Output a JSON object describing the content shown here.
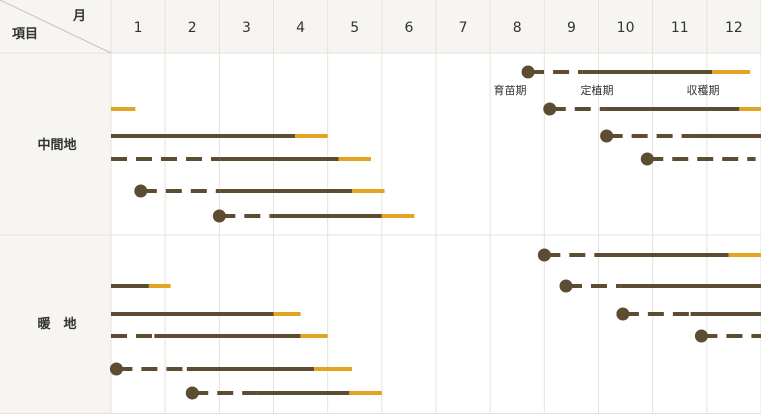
{
  "header": {
    "month_label": "月",
    "item_label": "項目",
    "months": [
      "1",
      "2",
      "3",
      "4",
      "5",
      "6",
      "7",
      "8",
      "9",
      "10",
      "11",
      "12"
    ]
  },
  "regions": [
    {
      "name": "中間地"
    },
    {
      "name": "暖　地"
    }
  ],
  "annotations": {
    "seedling": "育苗期",
    "planting": "定植期",
    "harvest": "収穫期"
  },
  "colors": {
    "line": "#5c4d32",
    "harvest": "#e3a521",
    "header_bg": "#f7f5f1",
    "grid": "#e6e2da"
  },
  "chart_data": {
    "type": "timeline",
    "x_unit": "month",
    "xlim": [
      0.5,
      12.5
    ],
    "rows": [
      {
        "region": 0,
        "dot": 8.2,
        "dash": [
          8.2,
          9.2
        ],
        "solid": [
          9.2,
          11.6
        ],
        "harvest": [
          11.6,
          12.3
        ]
      },
      {
        "region": 0,
        "dot": null,
        "dash": null,
        "solid": null,
        "harvest": [
          0.5,
          0.95
        ]
      },
      {
        "region": 0,
        "dot": 8.6,
        "dash": [
          8.6,
          9.6
        ],
        "solid": [
          9.6,
          12.1
        ],
        "harvest": [
          12.1,
          12.5
        ]
      },
      {
        "region": 0,
        "dot": null,
        "dash": null,
        "solid": [
          0.5,
          3.9
        ],
        "harvest": [
          3.9,
          4.5
        ]
      },
      {
        "region": 0,
        "dot": 9.65,
        "dash": [
          9.65,
          11.2
        ],
        "solid": [
          11.2,
          12.5
        ],
        "harvest": null
      },
      {
        "region": 0,
        "dot": null,
        "dash": [
          0.5,
          2.5
        ],
        "solid": [
          2.5,
          4.7
        ],
        "harvest": [
          4.7,
          5.3
        ]
      },
      {
        "region": 0,
        "dot": 10.4,
        "dash": [
          10.4,
          12.4
        ],
        "solid": null,
        "harvest": null
      },
      {
        "region": 0,
        "dot": 1.05,
        "dash": [
          1.05,
          2.5
        ],
        "solid": [
          2.5,
          4.95
        ],
        "harvest": [
          4.95,
          5.55
        ]
      },
      {
        "region": 0,
        "dot": 2.5,
        "dash": [
          2.5,
          3.45
        ],
        "solid": [
          3.45,
          5.5
        ],
        "harvest": [
          5.5,
          6.1
        ]
      },
      {
        "region": 1,
        "dot": 8.5,
        "dash": [
          8.5,
          9.5
        ],
        "solid": [
          9.5,
          11.9
        ],
        "harvest": [
          11.9,
          12.6
        ]
      },
      {
        "region": 1,
        "dot": null,
        "dash": null,
        "solid": [
          0.5,
          1.2
        ],
        "harvest": [
          1.2,
          1.6
        ]
      },
      {
        "region": 1,
        "dot": 8.9,
        "dash": [
          8.9,
          9.9
        ],
        "solid": [
          9.9,
          12.5
        ],
        "harvest": null
      },
      {
        "region": 1,
        "dot": 9.95,
        "dash": [
          9.95,
          11.2
        ],
        "solid": [
          11.2,
          12.5
        ],
        "harvest": null
      },
      {
        "region": 1,
        "dot": null,
        "dash": null,
        "solid": [
          0.5,
          3.5
        ],
        "harvest": [
          3.5,
          4.0
        ]
      },
      {
        "region": 1,
        "dot": 11.4,
        "dash": [
          11.4,
          12.5
        ],
        "solid": null,
        "harvest": null
      },
      {
        "region": 1,
        "dot": null,
        "dash": [
          0.5,
          1.3
        ],
        "solid": [
          1.3,
          4.0
        ],
        "harvest": [
          4.0,
          4.5
        ]
      },
      {
        "region": 1,
        "dot": 0.6,
        "dash": [
          0.6,
          1.9
        ],
        "solid": [
          1.9,
          4.25
        ],
        "harvest": [
          4.25,
          4.95
        ]
      },
      {
        "region": 1,
        "dot": 2.0,
        "dash": [
          2.0,
          3.2
        ],
        "solid": [
          3.2,
          4.9
        ],
        "harvest": [
          4.9,
          5.5
        ]
      }
    ]
  }
}
